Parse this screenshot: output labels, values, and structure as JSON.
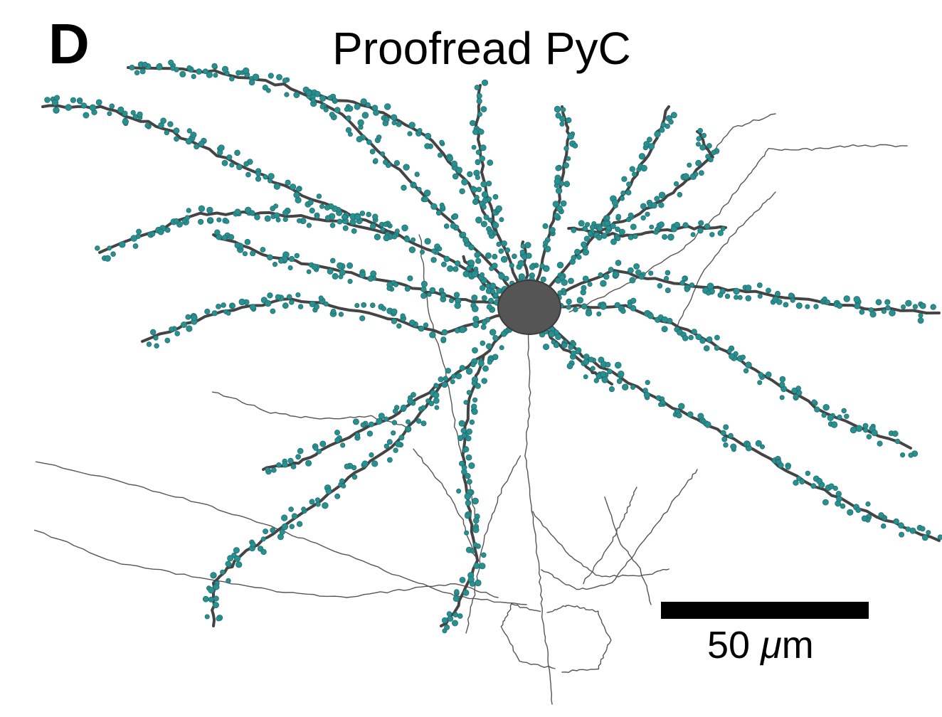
{
  "panel": {
    "letter": "D",
    "title": "Proofread PyC"
  },
  "scale_bar": {
    "value": "50",
    "unit_symbol": "μ",
    "unit_suffix": "m"
  },
  "colors": {
    "spine": "#2a8f8f",
    "spine_edge": "#1f6f70",
    "dendrite": "#444444",
    "axon": "#555555",
    "soma": "#555555"
  }
}
